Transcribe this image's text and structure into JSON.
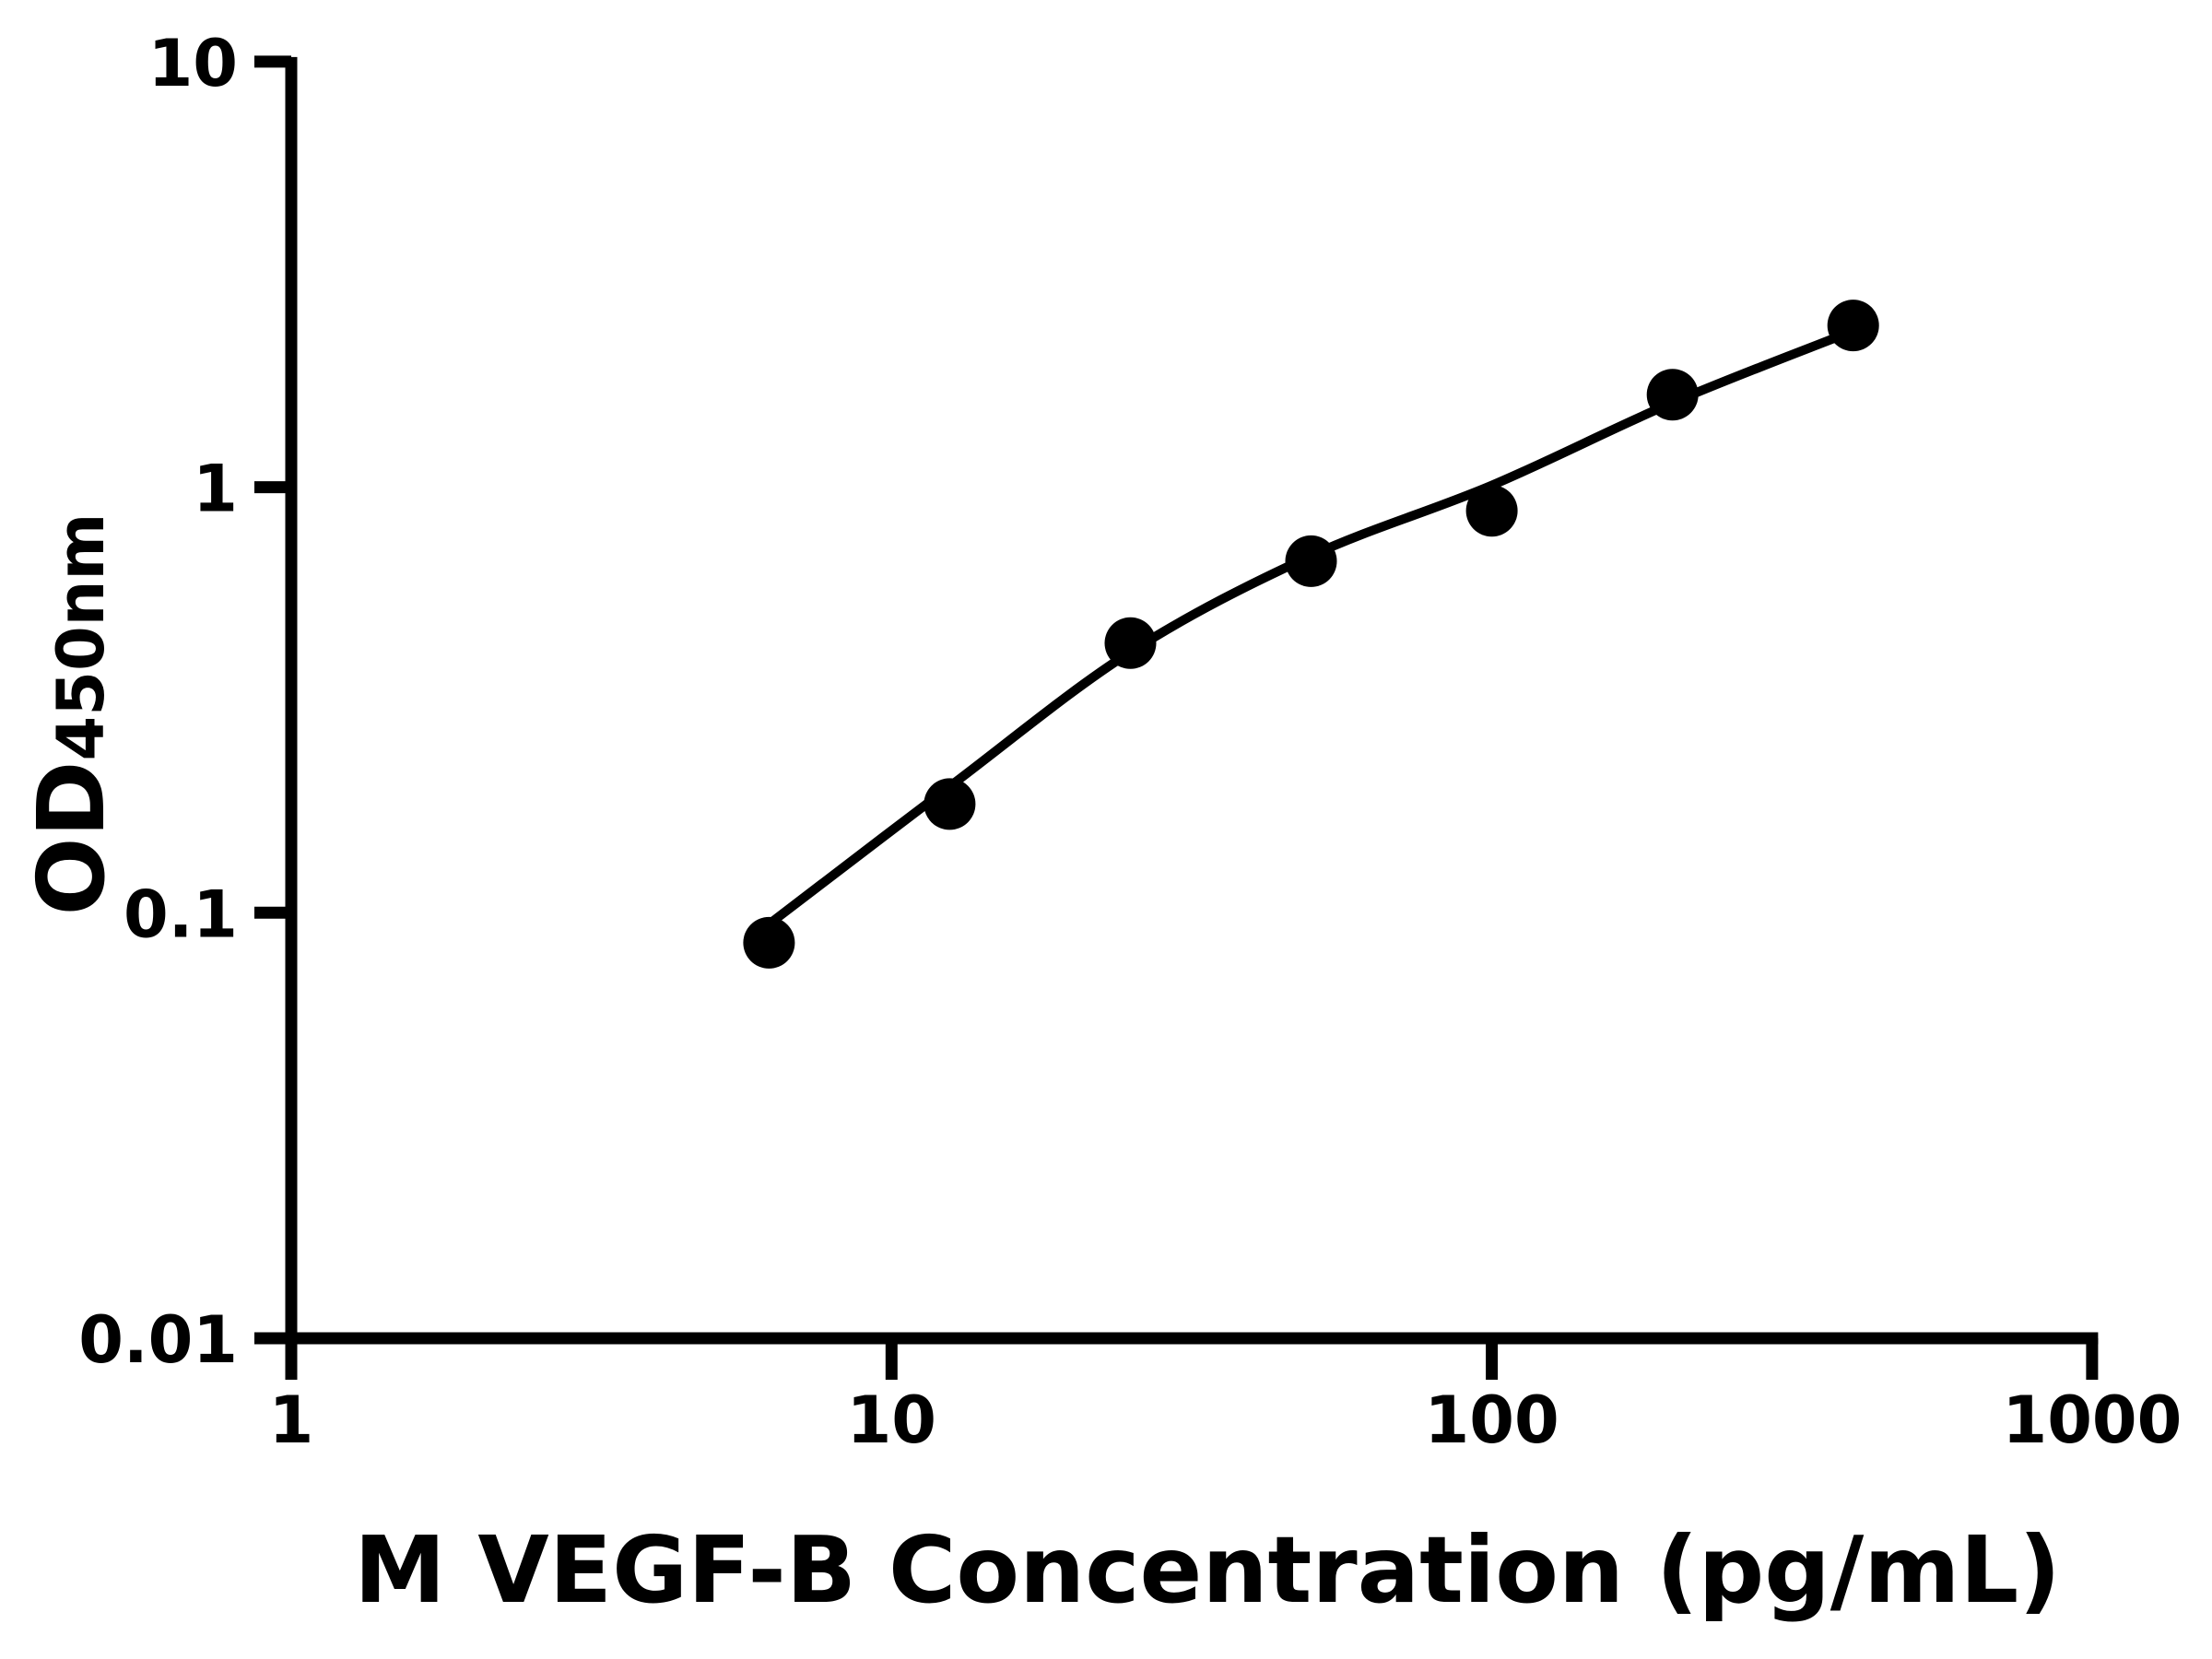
{
  "figure": {
    "background_color": "#ffffff",
    "foreground_color": "#000000"
  },
  "chart_data": {
    "type": "scatter",
    "title": "",
    "xlabel": "M VEGF-B Concentration (pg/mL)",
    "ylabel": "OD",
    "ylabel_subscript": "450nm",
    "xscale": "log",
    "yscale": "log",
    "xlim": [
      1,
      1000
    ],
    "ylim": [
      0.01,
      10
    ],
    "grid": false,
    "legend": null,
    "x_ticks": [
      1,
      10,
      100,
      1000
    ],
    "x_tick_labels": [
      "1",
      "10",
      "100",
      "1000"
    ],
    "y_ticks": [
      0.01,
      0.1,
      1,
      10
    ],
    "y_tick_labels": [
      "0.01",
      "0.1",
      "1",
      "10"
    ],
    "series": [
      {
        "name": "standard-points",
        "marker": "filled-circle",
        "color": "#000000",
        "x": [
          6.25,
          12.5,
          25,
          50,
          100,
          200,
          400
        ],
        "y": [
          0.085,
          0.18,
          0.43,
          0.67,
          0.88,
          1.65,
          2.4
        ]
      }
    ],
    "fit_curve": {
      "name": "four-parameter-logistic-fit",
      "color": "#000000",
      "x": [
        6.25,
        12.5,
        25,
        50,
        100,
        200,
        400
      ],
      "y": [
        0.094,
        0.198,
        0.41,
        0.69,
        1.01,
        1.58,
        2.33
      ]
    }
  }
}
